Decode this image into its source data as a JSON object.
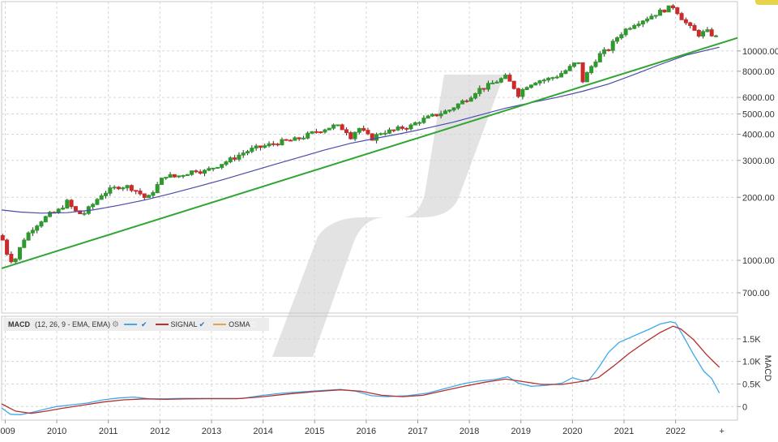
{
  "colors": {
    "up": "#2e9a2e",
    "down": "#cc2b2b",
    "ma": "#4b4ba8",
    "trendline": "#33a533",
    "macd": "#3fa9ea",
    "signal": "#b53030",
    "osma": "#e8a24a",
    "grid": "#d6d6d6",
    "watermark": "#e3e3e3"
  },
  "chart_data": [
    {
      "type": "candlestick",
      "title": "",
      "scale": "log",
      "ylim": [
        560,
        17200
      ],
      "y_ticks": [
        {
          "value": 10000,
          "label": "10000.00"
        },
        {
          "value": 8000,
          "label": "8000.00"
        },
        {
          "value": 6000,
          "label": "6000.00"
        },
        {
          "value": 5000,
          "label": "5000.00"
        },
        {
          "value": 4000,
          "label": "4000.00"
        },
        {
          "value": 3000,
          "label": "3000.00"
        },
        {
          "value": 2000,
          "label": "2000.00"
        },
        {
          "value": 1000,
          "label": "1000.00"
        },
        {
          "value": 700,
          "label": "700.00"
        }
      ],
      "x_range": [
        2008.93,
        2023.2
      ],
      "x_ticks": [
        {
          "value": 2009,
          "label": "2009"
        },
        {
          "value": 2010,
          "label": "2010"
        },
        {
          "value": 2011,
          "label": "2011"
        },
        {
          "value": 2012,
          "label": "2012"
        },
        {
          "value": 2013,
          "label": "2013"
        },
        {
          "value": 2014,
          "label": "2014"
        },
        {
          "value": 2015,
          "label": "2015"
        },
        {
          "value": 2016,
          "label": "2016"
        },
        {
          "value": 2017,
          "label": "2017"
        },
        {
          "value": 2018,
          "label": "2018"
        },
        {
          "value": 2019,
          "label": "2019"
        },
        {
          "value": 2020,
          "label": "2020"
        },
        {
          "value": 2021,
          "label": "2021"
        },
        {
          "value": 2022,
          "label": "2022"
        }
      ],
      "close_path": [
        [
          2008.95,
          1250
        ],
        [
          2009.08,
          1000
        ],
        [
          2009.2,
          1020
        ],
        [
          2009.35,
          1250
        ],
        [
          2009.5,
          1400
        ],
        [
          2009.7,
          1550
        ],
        [
          2009.85,
          1650
        ],
        [
          2010.0,
          1700
        ],
        [
          2010.2,
          1900
        ],
        [
          2010.35,
          1720
        ],
        [
          2010.5,
          1650
        ],
        [
          2010.7,
          1850
        ],
        [
          2010.85,
          2050
        ],
        [
          2011.0,
          2150
        ],
        [
          2011.2,
          2250
        ],
        [
          2011.4,
          2250
        ],
        [
          2011.6,
          2100
        ],
        [
          2011.75,
          1950
        ],
        [
          2011.9,
          2200
        ],
        [
          2012.1,
          2550
        ],
        [
          2012.3,
          2500
        ],
        [
          2012.5,
          2600
        ],
        [
          2012.7,
          2700
        ],
        [
          2012.85,
          2650
        ],
        [
          2013.0,
          2750
        ],
        [
          2013.2,
          2900
        ],
        [
          2013.4,
          3050
        ],
        [
          2013.6,
          3250
        ],
        [
          2013.8,
          3400
        ],
        [
          2014.0,
          3500
        ],
        [
          2014.2,
          3600
        ],
        [
          2014.4,
          3700
        ],
        [
          2014.6,
          3750
        ],
        [
          2014.8,
          3900
        ],
        [
          2015.0,
          4100
        ],
        [
          2015.2,
          4250
        ],
        [
          2015.4,
          4400
        ],
        [
          2015.6,
          4200
        ],
        [
          2015.7,
          3900
        ],
        [
          2015.85,
          4300
        ],
        [
          2016.0,
          4000
        ],
        [
          2016.1,
          3800
        ],
        [
          2016.3,
          4100
        ],
        [
          2016.5,
          4150
        ],
        [
          2016.7,
          4300
        ],
        [
          2016.85,
          4350
        ],
        [
          2017.0,
          4600
        ],
        [
          2017.2,
          4800
        ],
        [
          2017.4,
          5000
        ],
        [
          2017.6,
          5200
        ],
        [
          2017.8,
          5600
        ],
        [
          2018.0,
          6000
        ],
        [
          2018.15,
          6500
        ],
        [
          2018.3,
          6700
        ],
        [
          2018.5,
          7100
        ],
        [
          2018.7,
          7500
        ],
        [
          2018.85,
          6800
        ],
        [
          2018.95,
          6200
        ],
        [
          2019.1,
          6800
        ],
        [
          2019.3,
          7200
        ],
        [
          2019.5,
          7300
        ],
        [
          2019.7,
          7600
        ],
        [
          2019.85,
          8000
        ],
        [
          2020.0,
          8500
        ],
        [
          2020.1,
          9000
        ],
        [
          2020.2,
          7200
        ],
        [
          2020.35,
          8300
        ],
        [
          2020.5,
          9500
        ],
        [
          2020.7,
          10200
        ],
        [
          2020.85,
          11500
        ],
        [
          2021.0,
          12500
        ],
        [
          2021.2,
          13500
        ],
        [
          2021.4,
          14200
        ],
        [
          2021.6,
          15000
        ],
        [
          2021.8,
          15800
        ],
        [
          2021.95,
          16300
        ],
        [
          2022.05,
          15200
        ],
        [
          2022.15,
          14000
        ],
        [
          2022.3,
          12800
        ],
        [
          2022.45,
          12000
        ],
        [
          2022.6,
          12400
        ],
        [
          2022.75,
          11800
        ],
        [
          2022.85,
          11300
        ]
      ],
      "series": [
        {
          "name": "Moving average",
          "kind": "line",
          "points": [
            [
              2008.93,
              1740
            ],
            [
              2009.3,
              1700
            ],
            [
              2009.7,
              1680
            ],
            [
              2010.2,
              1690
            ],
            [
              2010.7,
              1740
            ],
            [
              2011.2,
              1830
            ],
            [
              2011.7,
              1940
            ],
            [
              2012.2,
              2080
            ],
            [
              2012.7,
              2240
            ],
            [
              2013.2,
              2420
            ],
            [
              2013.7,
              2630
            ],
            [
              2014.2,
              2860
            ],
            [
              2014.7,
              3100
            ],
            [
              2015.2,
              3370
            ],
            [
              2015.7,
              3620
            ],
            [
              2016.2,
              3830
            ],
            [
              2016.7,
              4040
            ],
            [
              2017.2,
              4290
            ],
            [
              2017.7,
              4580
            ],
            [
              2018.2,
              4940
            ],
            [
              2018.7,
              5330
            ],
            [
              2019.2,
              5660
            ],
            [
              2019.7,
              6000
            ],
            [
              2020.2,
              6420
            ],
            [
              2020.7,
              6950
            ],
            [
              2021.2,
              7720
            ],
            [
              2021.7,
              8620
            ],
            [
              2022.2,
              9550
            ],
            [
              2022.85,
              10420
            ]
          ]
        },
        {
          "name": "Trendline",
          "kind": "line",
          "points": [
            [
              2008.93,
              915
            ],
            [
              2023.2,
              11550
            ]
          ]
        }
      ],
      "watermark_text": "",
      "annotations": []
    },
    {
      "type": "line",
      "title": "MACD",
      "ylabel": "MACD",
      "ylim": [
        -300,
        2000
      ],
      "y_ticks": [
        {
          "value": 1500,
          "label": "1.5K"
        },
        {
          "value": 1000,
          "label": "1.0K"
        },
        {
          "value": 500,
          "label": "0.5K"
        },
        {
          "value": 0,
          "label": "0"
        }
      ],
      "legend": {
        "title": "MACD",
        "params": "(12, 26, 9 - EMA, EMA)",
        "signal_label": "SIGNAL",
        "osma_label": "OSMA"
      },
      "series": [
        {
          "name": "MACD",
          "values": [
            [
              2008.93,
              -30
            ],
            [
              2009.1,
              -170
            ],
            [
              2009.3,
              -180
            ],
            [
              2009.55,
              -120
            ],
            [
              2009.8,
              -50
            ],
            [
              2010.0,
              0
            ],
            [
              2010.3,
              40
            ],
            [
              2010.6,
              80
            ],
            [
              2010.9,
              150
            ],
            [
              2011.2,
              190
            ],
            [
              2011.5,
              210
            ],
            [
              2011.8,
              170
            ],
            [
              2012.1,
              170
            ],
            [
              2012.4,
              180
            ],
            [
              2012.8,
              180
            ],
            [
              2013.2,
              180
            ],
            [
              2013.6,
              180
            ],
            [
              2014.0,
              250
            ],
            [
              2014.4,
              300
            ],
            [
              2014.8,
              330
            ],
            [
              2015.2,
              360
            ],
            [
              2015.5,
              380
            ],
            [
              2015.8,
              340
            ],
            [
              2016.1,
              240
            ],
            [
              2016.4,
              220
            ],
            [
              2016.8,
              240
            ],
            [
              2017.2,
              300
            ],
            [
              2017.6,
              420
            ],
            [
              2017.9,
              510
            ],
            [
              2018.2,
              570
            ],
            [
              2018.5,
              600
            ],
            [
              2018.75,
              660
            ],
            [
              2018.95,
              520
            ],
            [
              2019.2,
              450
            ],
            [
              2019.5,
              470
            ],
            [
              2019.8,
              520
            ],
            [
              2020.0,
              640
            ],
            [
              2020.15,
              590
            ],
            [
              2020.3,
              560
            ],
            [
              2020.5,
              850
            ],
            [
              2020.7,
              1200
            ],
            [
              2020.9,
              1420
            ],
            [
              2021.1,
              1520
            ],
            [
              2021.3,
              1620
            ],
            [
              2021.5,
              1720
            ],
            [
              2021.7,
              1830
            ],
            [
              2021.9,
              1880
            ],
            [
              2022.0,
              1850
            ],
            [
              2022.15,
              1560
            ],
            [
              2022.35,
              1150
            ],
            [
              2022.55,
              780
            ],
            [
              2022.7,
              620
            ],
            [
              2022.85,
              300
            ]
          ]
        },
        {
          "name": "SIGNAL",
          "values": [
            [
              2008.93,
              60
            ],
            [
              2009.2,
              -100
            ],
            [
              2009.5,
              -150
            ],
            [
              2009.8,
              -100
            ],
            [
              2010.1,
              -40
            ],
            [
              2010.5,
              30
            ],
            [
              2010.9,
              100
            ],
            [
              2011.3,
              150
            ],
            [
              2011.7,
              170
            ],
            [
              2012.1,
              160
            ],
            [
              2012.5,
              170
            ],
            [
              2013.0,
              175
            ],
            [
              2013.5,
              175
            ],
            [
              2014.0,
              220
            ],
            [
              2014.5,
              280
            ],
            [
              2015.0,
              330
            ],
            [
              2015.5,
              370
            ],
            [
              2015.9,
              340
            ],
            [
              2016.3,
              250
            ],
            [
              2016.7,
              220
            ],
            [
              2017.1,
              250
            ],
            [
              2017.5,
              350
            ],
            [
              2017.9,
              450
            ],
            [
              2018.3,
              540
            ],
            [
              2018.7,
              610
            ],
            [
              2019.0,
              560
            ],
            [
              2019.4,
              490
            ],
            [
              2019.8,
              490
            ],
            [
              2020.2,
              560
            ],
            [
              2020.5,
              640
            ],
            [
              2020.8,
              900
            ],
            [
              2021.1,
              1180
            ],
            [
              2021.4,
              1420
            ],
            [
              2021.7,
              1640
            ],
            [
              2021.95,
              1780
            ],
            [
              2022.1,
              1720
            ],
            [
              2022.35,
              1480
            ],
            [
              2022.6,
              1150
            ],
            [
              2022.85,
              870
            ]
          ]
        }
      ],
      "annotations": []
    }
  ]
}
